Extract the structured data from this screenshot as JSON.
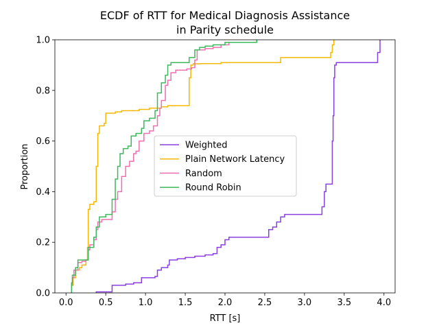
{
  "chart_data": {
    "type": "line",
    "step": true,
    "title_lines": [
      "ECDF of RTT for Medical Diagnosis Assistance",
      "in Parity schedule"
    ],
    "xlabel": "RTT [s]",
    "ylabel": "Proportion",
    "xlim": [
      -0.14,
      4.14
    ],
    "ylim": [
      0,
      1
    ],
    "xticks": [
      0.0,
      0.5,
      1.0,
      1.5,
      2.0,
      2.5,
      3.0,
      3.5,
      4.0
    ],
    "xtick_labels": [
      "0.0",
      "0.5",
      "1.0",
      "1.5",
      "2.0",
      "2.5",
      "3.0",
      "3.5",
      "4.0"
    ],
    "yticks": [
      0.0,
      0.2,
      0.4,
      0.6,
      0.8,
      1.0
    ],
    "ytick_labels": [
      "0.0",
      "0.2",
      "0.4",
      "0.6",
      "0.8",
      "1.0"
    ],
    "grid": false,
    "legend_position": "center",
    "series": [
      {
        "name": "Weighted",
        "color": "#8a3ee0",
        "points": [
          [
            0.38,
            0.0
          ],
          [
            0.38,
            0.004
          ],
          [
            0.55,
            0.004
          ],
          [
            0.58,
            0.03
          ],
          [
            0.75,
            0.035
          ],
          [
            0.85,
            0.04
          ],
          [
            0.95,
            0.06
          ],
          [
            1.12,
            0.065
          ],
          [
            1.15,
            0.09
          ],
          [
            1.2,
            0.1
          ],
          [
            1.28,
            0.11
          ],
          [
            1.3,
            0.13
          ],
          [
            1.4,
            0.135
          ],
          [
            1.5,
            0.14
          ],
          [
            1.62,
            0.145
          ],
          [
            1.75,
            0.15
          ],
          [
            1.85,
            0.155
          ],
          [
            1.9,
            0.18
          ],
          [
            1.95,
            0.19
          ],
          [
            2.0,
            0.21
          ],
          [
            2.05,
            0.22
          ],
          [
            2.5,
            0.22
          ],
          [
            2.55,
            0.25
          ],
          [
            2.6,
            0.26
          ],
          [
            2.65,
            0.28
          ],
          [
            2.7,
            0.3
          ],
          [
            2.75,
            0.31
          ],
          [
            3.2,
            0.31
          ],
          [
            3.22,
            0.34
          ],
          [
            3.25,
            0.4
          ],
          [
            3.27,
            0.43
          ],
          [
            3.33,
            0.43
          ],
          [
            3.35,
            0.6
          ],
          [
            3.36,
            0.7
          ],
          [
            3.37,
            0.85
          ],
          [
            3.38,
            0.9
          ],
          [
            3.4,
            0.91
          ],
          [
            3.9,
            0.91
          ],
          [
            3.92,
            0.95
          ],
          [
            3.95,
            0.99
          ],
          [
            3.95,
            1.0
          ]
        ]
      },
      {
        "name": "Plain Network Latency",
        "color": "#f5b800",
        "points": [
          [
            0.07,
            0.0
          ],
          [
            0.07,
            0.03
          ],
          [
            0.09,
            0.06
          ],
          [
            0.12,
            0.09
          ],
          [
            0.17,
            0.1
          ],
          [
            0.2,
            0.11
          ],
          [
            0.25,
            0.13
          ],
          [
            0.27,
            0.18
          ],
          [
            0.28,
            0.33
          ],
          [
            0.3,
            0.35
          ],
          [
            0.35,
            0.36
          ],
          [
            0.38,
            0.5
          ],
          [
            0.4,
            0.63
          ],
          [
            0.42,
            0.66
          ],
          [
            0.48,
            0.67
          ],
          [
            0.5,
            0.71
          ],
          [
            0.55,
            0.71
          ],
          [
            0.62,
            0.715
          ],
          [
            0.7,
            0.72
          ],
          [
            0.88,
            0.72
          ],
          [
            0.92,
            0.725
          ],
          [
            1.05,
            0.73
          ],
          [
            1.2,
            0.735
          ],
          [
            1.28,
            0.74
          ],
          [
            1.52,
            0.74
          ],
          [
            1.55,
            0.85
          ],
          [
            1.57,
            0.9
          ],
          [
            1.6,
            0.905
          ],
          [
            1.7,
            0.906
          ],
          [
            1.95,
            0.91
          ],
          [
            2.65,
            0.91
          ],
          [
            2.7,
            0.93
          ],
          [
            3.3,
            0.93
          ],
          [
            3.33,
            0.95
          ],
          [
            3.35,
            0.98
          ],
          [
            3.37,
            1.0
          ]
        ]
      },
      {
        "name": "Random",
        "color": "#f06db0",
        "points": [
          [
            0.07,
            0.0
          ],
          [
            0.07,
            0.03
          ],
          [
            0.08,
            0.06
          ],
          [
            0.1,
            0.09
          ],
          [
            0.15,
            0.12
          ],
          [
            0.2,
            0.125
          ],
          [
            0.25,
            0.13
          ],
          [
            0.28,
            0.17
          ],
          [
            0.3,
            0.19
          ],
          [
            0.35,
            0.21
          ],
          [
            0.38,
            0.25
          ],
          [
            0.4,
            0.28
          ],
          [
            0.45,
            0.29
          ],
          [
            0.55,
            0.29
          ],
          [
            0.58,
            0.32
          ],
          [
            0.62,
            0.37
          ],
          [
            0.65,
            0.4
          ],
          [
            0.7,
            0.46
          ],
          [
            0.75,
            0.5
          ],
          [
            0.8,
            0.52
          ],
          [
            0.85,
            0.55
          ],
          [
            0.88,
            0.56
          ],
          [
            0.92,
            0.6
          ],
          [
            0.98,
            0.63
          ],
          [
            1.05,
            0.64
          ],
          [
            1.1,
            0.66
          ],
          [
            1.15,
            0.7
          ],
          [
            1.18,
            0.73
          ],
          [
            1.2,
            0.76
          ],
          [
            1.25,
            0.82
          ],
          [
            1.28,
            0.84
          ],
          [
            1.32,
            0.87
          ],
          [
            1.38,
            0.88
          ],
          [
            1.52,
            0.885
          ],
          [
            1.58,
            0.89
          ],
          [
            1.62,
            0.92
          ],
          [
            1.65,
            0.96
          ],
          [
            1.75,
            0.965
          ],
          [
            1.85,
            0.97
          ],
          [
            1.95,
            0.98
          ],
          [
            2.05,
            0.99
          ],
          [
            2.35,
            0.99
          ],
          [
            2.4,
            1.0
          ]
        ]
      },
      {
        "name": "Round Robin",
        "color": "#3cb85c",
        "points": [
          [
            0.07,
            0.0
          ],
          [
            0.07,
            0.04
          ],
          [
            0.08,
            0.07
          ],
          [
            0.12,
            0.1
          ],
          [
            0.15,
            0.13
          ],
          [
            0.25,
            0.13
          ],
          [
            0.28,
            0.18
          ],
          [
            0.35,
            0.22
          ],
          [
            0.38,
            0.26
          ],
          [
            0.42,
            0.3
          ],
          [
            0.5,
            0.31
          ],
          [
            0.55,
            0.31
          ],
          [
            0.58,
            0.37
          ],
          [
            0.62,
            0.45
          ],
          [
            0.65,
            0.5
          ],
          [
            0.68,
            0.55
          ],
          [
            0.72,
            0.57
          ],
          [
            0.78,
            0.58
          ],
          [
            0.82,
            0.62
          ],
          [
            0.88,
            0.63
          ],
          [
            0.95,
            0.65
          ],
          [
            0.98,
            0.68
          ],
          [
            1.05,
            0.69
          ],
          [
            1.12,
            0.72
          ],
          [
            1.15,
            0.79
          ],
          [
            1.2,
            0.83
          ],
          [
            1.25,
            0.86
          ],
          [
            1.28,
            0.9
          ],
          [
            1.32,
            0.91
          ],
          [
            1.52,
            0.91
          ],
          [
            1.55,
            0.93
          ],
          [
            1.62,
            0.96
          ],
          [
            1.68,
            0.97
          ],
          [
            1.75,
            0.975
          ],
          [
            1.85,
            0.98
          ],
          [
            2.0,
            0.99
          ],
          [
            2.35,
            0.99
          ],
          [
            2.4,
            1.0
          ]
        ]
      }
    ]
  }
}
